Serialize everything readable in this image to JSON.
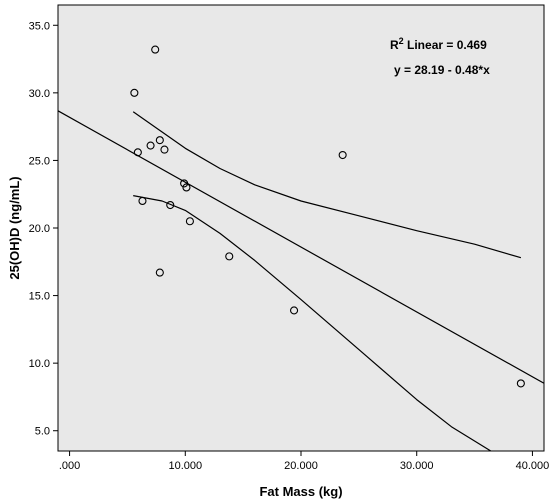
{
  "chart_data": {
    "type": "scatter",
    "title": "",
    "xlabel": "Fat Mass (kg)",
    "ylabel": "25(OH)D (ng/mL)",
    "xlim": [
      -1,
      41
    ],
    "ylim": [
      3.5,
      36.5
    ],
    "x_ticks": [
      0,
      10,
      20,
      30,
      40
    ],
    "x_tick_labels": [
      ".000",
      "10.000",
      "20.000",
      "30.000",
      "40.000"
    ],
    "y_ticks": [
      5,
      10,
      15,
      20,
      25,
      30,
      35
    ],
    "y_tick_labels": [
      "5.0",
      "10.0",
      "15.0",
      "20.0",
      "25.0",
      "30.0",
      "35.0"
    ],
    "grid": false,
    "plot_background": "#e8e8e8",
    "point_color": "#000000",
    "points": [
      {
        "x": 7.4,
        "y": 33.2
      },
      {
        "x": 5.6,
        "y": 30.0
      },
      {
        "x": 7.8,
        "y": 26.5
      },
      {
        "x": 7.0,
        "y": 26.1
      },
      {
        "x": 8.2,
        "y": 25.8
      },
      {
        "x": 5.9,
        "y": 25.6
      },
      {
        "x": 9.9,
        "y": 23.3
      },
      {
        "x": 10.1,
        "y": 23.0
      },
      {
        "x": 6.3,
        "y": 22.0
      },
      {
        "x": 8.7,
        "y": 21.7
      },
      {
        "x": 10.4,
        "y": 20.5
      },
      {
        "x": 13.8,
        "y": 17.9
      },
      {
        "x": 7.8,
        "y": 16.7
      },
      {
        "x": 19.4,
        "y": 13.9
      },
      {
        "x": 23.6,
        "y": 25.4
      },
      {
        "x": 39.0,
        "y": 8.5
      }
    ],
    "fit": {
      "intercept": 28.19,
      "slope": -0.48,
      "r_squared": 0.469,
      "r_squared_label": "R",
      "r_squared_superscript": "2",
      "linear_label": " Linear = 0.469",
      "equation_label": "y = 28.19 - 0.48*x"
    },
    "ci_upper": [
      {
        "x": 5.5,
        "y": 28.6
      },
      {
        "x": 8,
        "y": 27.1
      },
      {
        "x": 10,
        "y": 25.9
      },
      {
        "x": 13,
        "y": 24.4
      },
      {
        "x": 16,
        "y": 23.2
      },
      {
        "x": 20,
        "y": 22.0
      },
      {
        "x": 25,
        "y": 20.9
      },
      {
        "x": 30,
        "y": 19.8
      },
      {
        "x": 35,
        "y": 18.8
      },
      {
        "x": 39,
        "y": 17.8
      }
    ],
    "ci_lower": [
      {
        "x": 5.5,
        "y": 22.4
      },
      {
        "x": 8,
        "y": 22.0
      },
      {
        "x": 10,
        "y": 21.3
      },
      {
        "x": 13,
        "y": 19.6
      },
      {
        "x": 16,
        "y": 17.6
      },
      {
        "x": 20,
        "y": 14.7
      },
      {
        "x": 25,
        "y": 11.0
      },
      {
        "x": 30,
        "y": 7.3
      },
      {
        "x": 33,
        "y": 5.3
      },
      {
        "x": 36.4,
        "y": 3.5
      }
    ]
  }
}
